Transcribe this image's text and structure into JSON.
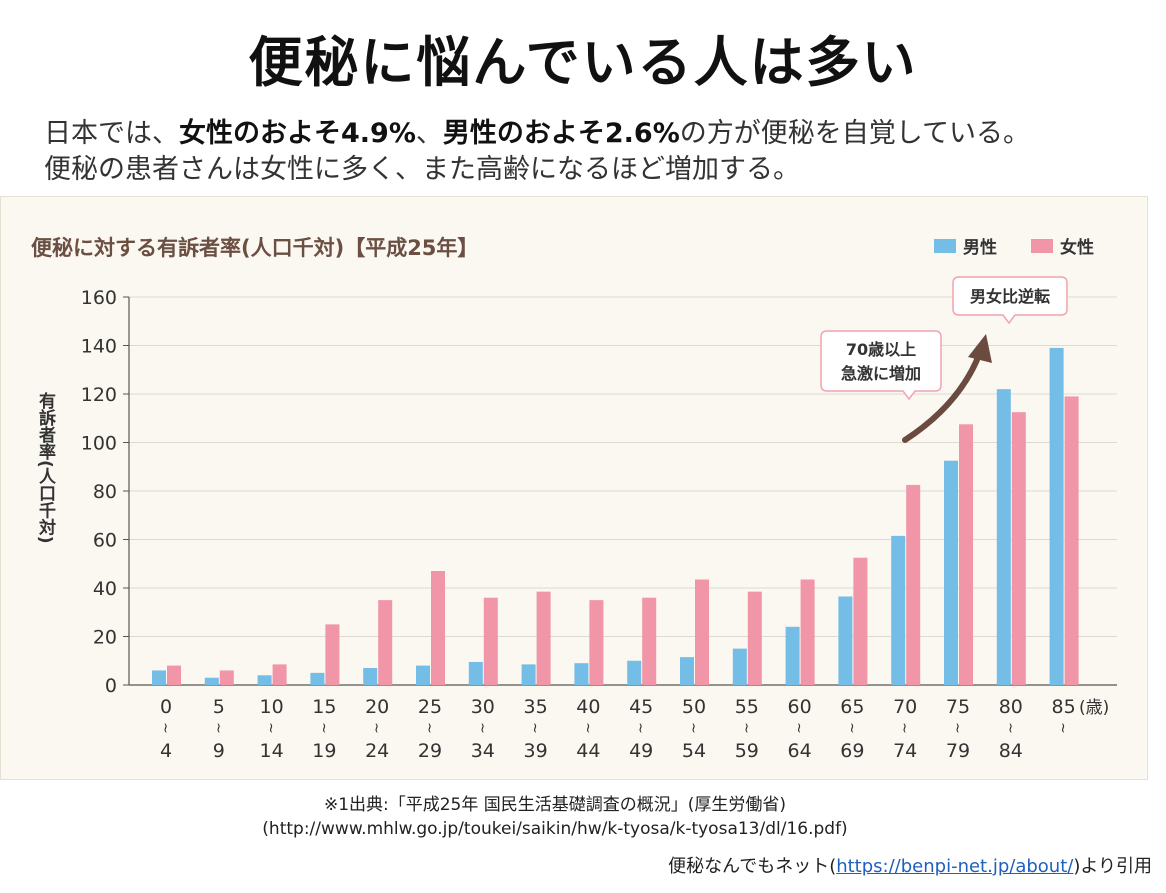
{
  "title": "便秘に悩んでいる人は多い",
  "lead": {
    "l1_a": "日本では、",
    "l1_b": "女性のおよそ4.9%",
    "l1_c": "、",
    "l1_d": "男性のおよそ2.6%",
    "l1_e": "の方が便秘を自覚している。",
    "l2": "便秘の患者さんは女性に多く、また高齢になるほど増加する。"
  },
  "chart_data": {
    "type": "bar",
    "title": "便秘に対する有訴者率(人口千対)【平成25年】",
    "ylabel": "有訴者率(人口千対)",
    "ylim": [
      0,
      160
    ],
    "yticks": [
      "0",
      "20",
      "40",
      "60",
      "80",
      "100",
      "120",
      "140",
      "160"
    ],
    "unit_label": "(歳)",
    "categories": [
      {
        "top": "0",
        "bottom": "4"
      },
      {
        "top": "5",
        "bottom": "9"
      },
      {
        "top": "10",
        "bottom": "14"
      },
      {
        "top": "15",
        "bottom": "19"
      },
      {
        "top": "20",
        "bottom": "24"
      },
      {
        "top": "25",
        "bottom": "29"
      },
      {
        "top": "30",
        "bottom": "34"
      },
      {
        "top": "35",
        "bottom": "39"
      },
      {
        "top": "40",
        "bottom": "44"
      },
      {
        "top": "45",
        "bottom": "49"
      },
      {
        "top": "50",
        "bottom": "54"
      },
      {
        "top": "55",
        "bottom": "59"
      },
      {
        "top": "60",
        "bottom": "64"
      },
      {
        "top": "65",
        "bottom": "69"
      },
      {
        "top": "70",
        "bottom": "74"
      },
      {
        "top": "75",
        "bottom": "79"
      },
      {
        "top": "80",
        "bottom": "84"
      },
      {
        "top": "85",
        "bottom": ""
      }
    ],
    "series": [
      {
        "name": "男性",
        "color": "#74bde6",
        "values": [
          6,
          3,
          4,
          5,
          7,
          8,
          9.5,
          8.5,
          9,
          10,
          11.5,
          15,
          24,
          36.5,
          61.5,
          92.5,
          122,
          139
        ]
      },
      {
        "name": "女性",
        "color": "#f096a8",
        "values": [
          8,
          6,
          8.5,
          25,
          35,
          47,
          36,
          38.5,
          35,
          36,
          43.5,
          38.5,
          43.5,
          52.5,
          82.5,
          107.5,
          112.5,
          119
        ]
      }
    ],
    "grid": true,
    "legend_position": "top-right",
    "annotations": [
      {
        "text": [
          "70歳以上",
          "急激に増加"
        ]
      },
      {
        "text": [
          "男女比逆転"
        ]
      }
    ]
  },
  "source": {
    "line1": "※1出典:「平成25年 国民生活基礎調査の概況」(厚生労働省)",
    "line2": "(http://www.mhlw.go.jp/toukei/saikin/hw/k-tyosa/k-tyosa13/dl/16.pdf)"
  },
  "credit": {
    "prefix": "便秘なんでもネット(",
    "link": "https://benpi-net.jp/about/",
    "suffix": ")より引用"
  },
  "colors": {
    "male": "#74bde6",
    "female": "#f096a8",
    "chart_title": "#6b4f43",
    "arrow": "#6b4a40"
  }
}
